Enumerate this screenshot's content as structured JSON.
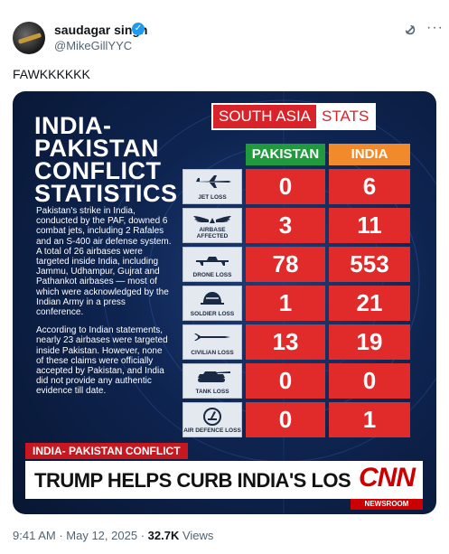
{
  "author": {
    "name": "saudagar singh",
    "handle": "@MikeGillYYC"
  },
  "tweet": {
    "text": "FAWKKKKKK"
  },
  "image": {
    "banner": {
      "left": "SOUTH ASIA",
      "right": "STATS"
    },
    "headline": [
      "INDIA-",
      "PAKISTAN",
      "CONFLICT",
      "STATISTICS"
    ],
    "description": [
      "Pakistan's strike in India, conducted by the PAF, downed 6 combat jets, including 2 Rafales and an S-400 air defense system. A total of 26 airbases were targeted inside India, including Jammu, Udhampur, Gujrat and Pathankot airbases — most of which were acknowledged by the Indian Army in a press conference.",
      "According to Indian statements, nearly 23 airbases were targeted inside Pakistan. However, none of these claims were officially accepted by Pakistan, and India did not provide any authentic evidence till date."
    ],
    "columns": {
      "pakistan": "PAKISTAN",
      "india": "INDIA"
    },
    "rows": [
      {
        "label": "JET LOSS",
        "icon": "jet-icon",
        "pakistan": "0",
        "india": "6"
      },
      {
        "label": "AIRBASE AFFECTED",
        "icon": "wings-icon",
        "pakistan": "3",
        "india": "11"
      },
      {
        "label": "DRONE LOSS",
        "icon": "drone-icon",
        "pakistan": "78",
        "india": "553"
      },
      {
        "label": "SOLDIER LOSS",
        "icon": "soldier-icon",
        "pakistan": "1",
        "india": "21"
      },
      {
        "label": "CIVILIAN LOSS",
        "icon": "missile-icon",
        "pakistan": "13",
        "india": "19"
      },
      {
        "label": "TANK LOSS",
        "icon": "tank-icon",
        "pakistan": "0",
        "india": "0"
      },
      {
        "label": "AIR DEFENCE LOSS",
        "icon": "air-defence-icon",
        "pakistan": "0",
        "india": "1"
      }
    ],
    "ticker_label": "INDIA- PAKISTAN CONFLICT",
    "ticker_headline": "TRUMP HELPS CURB INDIA'S LOSSES",
    "cnn_logo": "CNN",
    "cnn_sub": "NEWSROOM"
  },
  "meta": {
    "time": "9:41 AM",
    "date": "May 12, 2025",
    "views_count": "32.7K",
    "views_label": "Views"
  },
  "colors": {
    "pakistan": "#1f9a3c",
    "india": "#f08a2a",
    "cell": "#e12b2b",
    "background": "#0e2450",
    "accent": "#d8232a"
  }
}
